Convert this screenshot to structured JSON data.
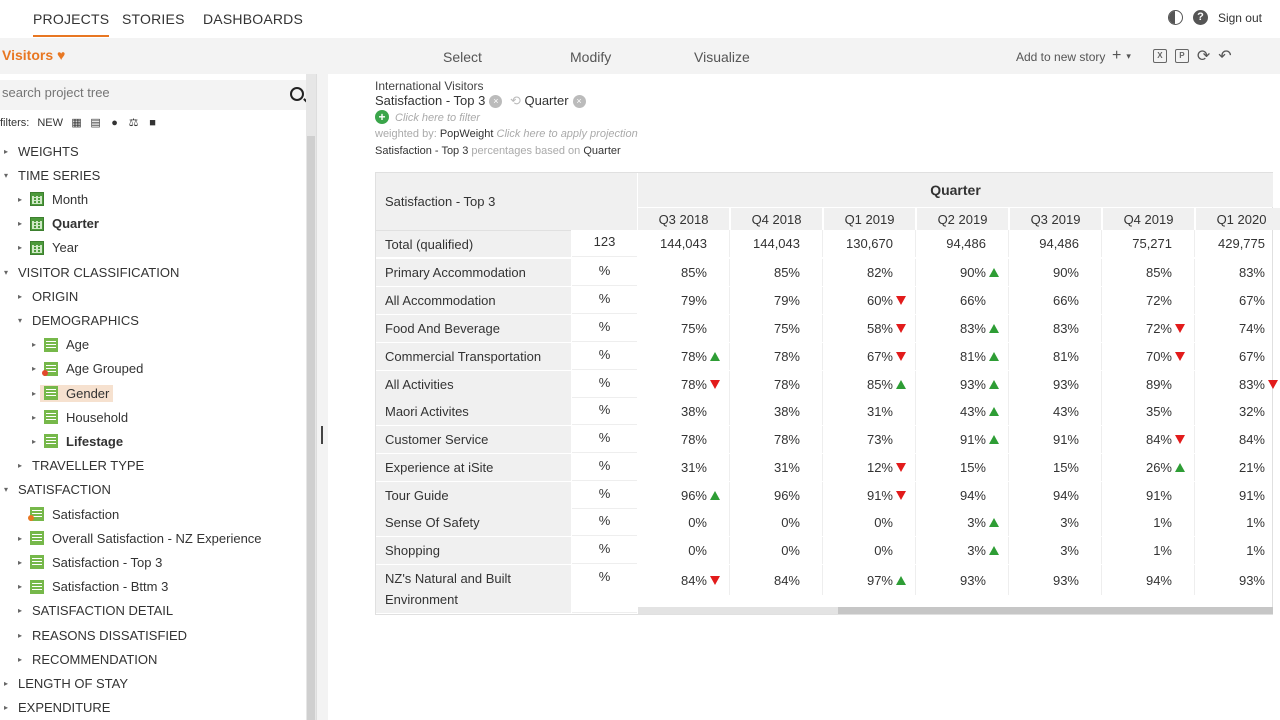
{
  "topnav": {
    "tabs": [
      "PROJECTS",
      "STORIES",
      "DASHBOARDS"
    ],
    "sign_out": "Sign out"
  },
  "toolbar": {
    "project": "Visitors",
    "modes": [
      "Select",
      "Modify",
      "Visualize"
    ],
    "add_story": "Add to new story"
  },
  "sidebar": {
    "search_placeholder": "search project tree",
    "filters_label": "filters:",
    "filters_new": "NEW",
    "tree": [
      {
        "label": "WEIGHTS",
        "indent": 0,
        "arrow": "▸",
        "icon": "none",
        "bold": false,
        "selected": false
      },
      {
        "label": "TIME SERIES",
        "indent": 0,
        "arrow": "▾",
        "icon": "none",
        "bold": false,
        "selected": false
      },
      {
        "label": "Month",
        "indent": 1,
        "arrow": "▸",
        "icon": "grid",
        "bold": false,
        "selected": false
      },
      {
        "label": "Quarter",
        "indent": 1,
        "arrow": "▸",
        "icon": "grid",
        "bold": true,
        "selected": false
      },
      {
        "label": "Year",
        "indent": 1,
        "arrow": "▸",
        "icon": "grid",
        "bold": false,
        "selected": false
      },
      {
        "label": "VISITOR CLASSIFICATION",
        "indent": 0,
        "arrow": "▾",
        "icon": "none",
        "bold": false,
        "selected": false
      },
      {
        "label": "ORIGIN",
        "indent": 1,
        "arrow": "▸",
        "icon": "none",
        "bold": false,
        "selected": false
      },
      {
        "label": "DEMOGRAPHICS",
        "indent": 1,
        "arrow": "▾",
        "icon": "none",
        "bold": false,
        "selected": false
      },
      {
        "label": "Age",
        "indent": 2,
        "arrow": "▸",
        "icon": "bars",
        "bold": false,
        "selected": false
      },
      {
        "label": "Age Grouped",
        "indent": 2,
        "arrow": "▸",
        "icon": "bars red",
        "bold": false,
        "selected": false
      },
      {
        "label": "Gender",
        "indent": 2,
        "arrow": "▸",
        "icon": "bars",
        "bold": false,
        "selected": true
      },
      {
        "label": "Household",
        "indent": 2,
        "arrow": "▸",
        "icon": "bars",
        "bold": false,
        "selected": false
      },
      {
        "label": "Lifestage",
        "indent": 2,
        "arrow": "▸",
        "icon": "bars",
        "bold": true,
        "selected": false
      },
      {
        "label": "TRAVELLER TYPE",
        "indent": 1,
        "arrow": "▸",
        "icon": "none",
        "bold": false,
        "selected": false
      },
      {
        "label": "SATISFACTION",
        "indent": 0,
        "arrow": "▾",
        "icon": "none",
        "bold": false,
        "selected": false
      },
      {
        "label": "Satisfaction",
        "indent": 1,
        "arrow": "",
        "icon": "bars org",
        "bold": false,
        "selected": false
      },
      {
        "label": "Overall Satisfaction - NZ Experience",
        "indent": 1,
        "arrow": "▸",
        "icon": "bars",
        "bold": false,
        "selected": false
      },
      {
        "label": "Satisfaction - Top 3",
        "indent": 1,
        "arrow": "▸",
        "icon": "bars",
        "bold": false,
        "selected": false
      },
      {
        "label": "Satisfaction - Bttm 3",
        "indent": 1,
        "arrow": "▸",
        "icon": "bars",
        "bold": false,
        "selected": false
      },
      {
        "label": "SATISFACTION DETAIL",
        "indent": 1,
        "arrow": "▸",
        "icon": "none",
        "bold": false,
        "selected": false
      },
      {
        "label": "REASONS DISSATISFIED",
        "indent": 1,
        "arrow": "▸",
        "icon": "none",
        "bold": false,
        "selected": false
      },
      {
        "label": "RECOMMENDATION",
        "indent": 1,
        "arrow": "▸",
        "icon": "none",
        "bold": false,
        "selected": false
      },
      {
        "label": "LENGTH OF STAY",
        "indent": 0,
        "arrow": "▸",
        "icon": "none",
        "bold": false,
        "selected": false
      },
      {
        "label": "EXPENDITURE",
        "indent": 0,
        "arrow": "▸",
        "icon": "none",
        "bold": false,
        "selected": false
      }
    ]
  },
  "report": {
    "dataset": "International Visitors",
    "row_var": "Satisfaction - Top 3",
    "col_var": "Quarter",
    "filter_hint": "Click here to filter",
    "weighted_label": "weighted by:",
    "weight_var": "PopWeight",
    "projection_hint": "Click here to apply projection",
    "pct_subject": "Satisfaction - Top 3",
    "pct_text": "percentages based on",
    "pct_base": "Quarter"
  },
  "table": {
    "corner_title": "Satisfaction - Top 3",
    "col_header": "Quarter",
    "columns": [
      "Q3 2018",
      "Q4 2018",
      "Q1 2019",
      "Q2 2019",
      "Q3 2019",
      "Q4 2019",
      "Q1 2020"
    ],
    "rows": [
      {
        "label": "Total (qualified)",
        "unit": "123",
        "values": [
          "144,043",
          "144,043",
          "130,670",
          "94,486",
          "94,486",
          "75,271",
          "429,775"
        ],
        "sig": [
          "",
          "",
          "",
          "",
          "",
          "",
          ""
        ]
      },
      {
        "label": "Primary Accommodation",
        "unit": "%",
        "values": [
          "85%",
          "85%",
          "82%",
          "90%",
          "90%",
          "85%",
          "83%"
        ],
        "sig": [
          "",
          "",
          "",
          "up",
          "",
          "",
          ""
        ]
      },
      {
        "label": "All Accommodation",
        "unit": "%",
        "values": [
          "79%",
          "79%",
          "60%",
          "66%",
          "66%",
          "72%",
          "67%"
        ],
        "sig": [
          "",
          "",
          "down",
          "",
          "",
          "",
          ""
        ]
      },
      {
        "label": "Food And Beverage",
        "unit": "%",
        "values": [
          "75%",
          "75%",
          "58%",
          "83%",
          "83%",
          "72%",
          "74%"
        ],
        "sig": [
          "",
          "",
          "down",
          "up",
          "",
          "down",
          ""
        ]
      },
      {
        "label": "Commercial Transportation",
        "unit": "%",
        "values": [
          "78%",
          "78%",
          "67%",
          "81%",
          "81%",
          "70%",
          "67%"
        ],
        "sig": [
          "up",
          "",
          "down",
          "up",
          "",
          "down",
          ""
        ]
      },
      {
        "label": "All Activities",
        "unit": "%",
        "values": [
          "78%",
          "78%",
          "85%",
          "93%",
          "93%",
          "89%",
          "83%"
        ],
        "sig": [
          "down",
          "",
          "up",
          "up",
          "",
          "",
          "down"
        ]
      },
      {
        "label": "Maori Activites",
        "unit": "%",
        "values": [
          "38%",
          "38%",
          "31%",
          "43%",
          "43%",
          "35%",
          "32%"
        ],
        "sig": [
          "",
          "",
          "",
          "up",
          "",
          "",
          ""
        ]
      },
      {
        "label": "Customer Service",
        "unit": "%",
        "values": [
          "78%",
          "78%",
          "73%",
          "91%",
          "91%",
          "84%",
          "84%"
        ],
        "sig": [
          "",
          "",
          "",
          "up",
          "",
          "down",
          ""
        ]
      },
      {
        "label": "Experience at iSite",
        "unit": "%",
        "values": [
          "31%",
          "31%",
          "12%",
          "15%",
          "15%",
          "26%",
          "21%"
        ],
        "sig": [
          "",
          "",
          "down",
          "",
          "",
          "up",
          ""
        ]
      },
      {
        "label": "Tour Guide",
        "unit": "%",
        "values": [
          "96%",
          "96%",
          "91%",
          "94%",
          "94%",
          "91%",
          "91%"
        ],
        "sig": [
          "up",
          "",
          "down",
          "",
          "",
          "",
          ""
        ]
      },
      {
        "label": "Sense Of Safety",
        "unit": "%",
        "values": [
          "0%",
          "0%",
          "0%",
          "3%",
          "3%",
          "1%",
          "1%"
        ],
        "sig": [
          "",
          "",
          "",
          "up",
          "",
          "",
          ""
        ]
      },
      {
        "label": "Shopping",
        "unit": "%",
        "values": [
          "0%",
          "0%",
          "0%",
          "3%",
          "3%",
          "1%",
          "1%"
        ],
        "sig": [
          "",
          "",
          "",
          "up",
          "",
          "",
          ""
        ]
      },
      {
        "label": "NZ's Natural and Built Environment",
        "unit": "%",
        "values": [
          "84%",
          "84%",
          "97%",
          "93%",
          "93%",
          "94%",
          "93%"
        ],
        "sig": [
          "down",
          "",
          "up",
          "",
          "",
          "",
          ""
        ]
      }
    ]
  }
}
